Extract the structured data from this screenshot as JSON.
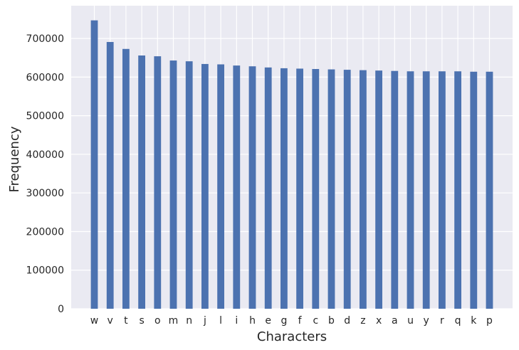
{
  "chart_data": {
    "type": "bar",
    "title": "",
    "xlabel": "Characters",
    "ylabel": "Frequency",
    "categories": [
      "w",
      "v",
      "t",
      "s",
      "o",
      "m",
      "n",
      "j",
      "l",
      "i",
      "h",
      "e",
      "g",
      "f",
      "c",
      "b",
      "d",
      "z",
      "x",
      "a",
      "u",
      "y",
      "r",
      "q",
      "k",
      "p"
    ],
    "values": [
      747000,
      691000,
      673000,
      656000,
      654000,
      643000,
      641000,
      634000,
      633000,
      630000,
      628000,
      625000,
      623000,
      622000,
      621000,
      620000,
      619000,
      618000,
      617000,
      616000,
      615000,
      615000,
      615000,
      615000,
      614000,
      614000
    ],
    "ylim": [
      0,
      785000
    ],
    "yticks": [
      0,
      100000,
      200000,
      300000,
      400000,
      500000,
      600000,
      700000
    ],
    "grid": true,
    "colors": {
      "bar": "#4c72b0",
      "plot_background": "#eaeaf2",
      "grid": "#ffffff"
    }
  }
}
